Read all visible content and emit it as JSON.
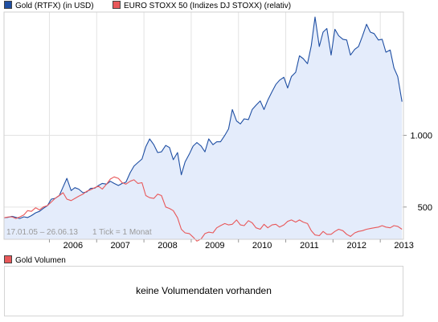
{
  "legend": {
    "series1": {
      "label": "Gold (RTFX) (in USD)",
      "color": "#1f4fa3"
    },
    "series2": {
      "label": "EURO STOXX 50 (Indizes DJ STOXX) (relativ)",
      "color": "#e8585a"
    }
  },
  "info": {
    "date_range": "17.01.05 – 26.06.13",
    "tick": "1 Tick = 1 Monat"
  },
  "volume": {
    "legend_label": "Gold Volumen",
    "legend_color": "#e8585a",
    "message": "keine Volumendaten vorhanden"
  },
  "chart_data": {
    "type": "line",
    "x_tick_labels": [
      "2006",
      "2007",
      "2008",
      "2009",
      "2010",
      "2011",
      "2012",
      "2013"
    ],
    "y_tick_labels": [
      "500",
      "1.000"
    ],
    "y_ticks": [
      500,
      1000
    ],
    "xlim": [
      2005.04,
      2013.49
    ],
    "ylim": [
      275,
      1860
    ],
    "grid": true,
    "legend_position": "top-left",
    "series": [
      {
        "name": "Gold (RTFX) (in USD)",
        "color": "#1f4fa3",
        "fill": "#e4ecfb",
        "points": [
          [
            2005.04,
            425
          ],
          [
            2005.12,
            428
          ],
          [
            2005.21,
            435
          ],
          [
            2005.29,
            428
          ],
          [
            2005.37,
            420
          ],
          [
            2005.46,
            432
          ],
          [
            2005.54,
            427
          ],
          [
            2005.62,
            440
          ],
          [
            2005.71,
            460
          ],
          [
            2005.79,
            470
          ],
          [
            2005.87,
            490
          ],
          [
            2005.96,
            510
          ],
          [
            2006.04,
            555
          ],
          [
            2006.12,
            560
          ],
          [
            2006.21,
            580
          ],
          [
            2006.29,
            640
          ],
          [
            2006.37,
            700
          ],
          [
            2006.46,
            615
          ],
          [
            2006.54,
            635
          ],
          [
            2006.62,
            625
          ],
          [
            2006.71,
            600
          ],
          [
            2006.79,
            605
          ],
          [
            2006.87,
            630
          ],
          [
            2006.96,
            632
          ],
          [
            2007.04,
            650
          ],
          [
            2007.12,
            665
          ],
          [
            2007.21,
            660
          ],
          [
            2007.29,
            680
          ],
          [
            2007.37,
            665
          ],
          [
            2007.46,
            650
          ],
          [
            2007.54,
            665
          ],
          [
            2007.62,
            673
          ],
          [
            2007.71,
            740
          ],
          [
            2007.79,
            785
          ],
          [
            2007.87,
            810
          ],
          [
            2007.96,
            835
          ],
          [
            2008.04,
            920
          ],
          [
            2008.12,
            975
          ],
          [
            2008.21,
            935
          ],
          [
            2008.29,
            880
          ],
          [
            2008.37,
            885
          ],
          [
            2008.46,
            930
          ],
          [
            2008.54,
            915
          ],
          [
            2008.62,
            830
          ],
          [
            2008.71,
            880
          ],
          [
            2008.79,
            725
          ],
          [
            2008.87,
            815
          ],
          [
            2008.96,
            870
          ],
          [
            2009.04,
            925
          ],
          [
            2009.12,
            950
          ],
          [
            2009.21,
            925
          ],
          [
            2009.29,
            885
          ],
          [
            2009.37,
            975
          ],
          [
            2009.46,
            935
          ],
          [
            2009.54,
            955
          ],
          [
            2009.62,
            955
          ],
          [
            2009.71,
            1000
          ],
          [
            2009.79,
            1045
          ],
          [
            2009.87,
            1180
          ],
          [
            2009.96,
            1100
          ],
          [
            2010.04,
            1080
          ],
          [
            2010.12,
            1115
          ],
          [
            2010.21,
            1110
          ],
          [
            2010.29,
            1180
          ],
          [
            2010.37,
            1210
          ],
          [
            2010.46,
            1240
          ],
          [
            2010.54,
            1180
          ],
          [
            2010.62,
            1245
          ],
          [
            2010.71,
            1305
          ],
          [
            2010.79,
            1355
          ],
          [
            2010.87,
            1385
          ],
          [
            2010.96,
            1405
          ],
          [
            2011.04,
            1330
          ],
          [
            2011.12,
            1410
          ],
          [
            2011.21,
            1440
          ],
          [
            2011.29,
            1555
          ],
          [
            2011.37,
            1535
          ],
          [
            2011.46,
            1500
          ],
          [
            2011.54,
            1625
          ],
          [
            2011.62,
            1825
          ],
          [
            2011.71,
            1620
          ],
          [
            2011.79,
            1720
          ],
          [
            2011.87,
            1745
          ],
          [
            2011.96,
            1560
          ],
          [
            2012.04,
            1740
          ],
          [
            2012.12,
            1695
          ],
          [
            2012.21,
            1670
          ],
          [
            2012.29,
            1665
          ],
          [
            2012.37,
            1560
          ],
          [
            2012.46,
            1600
          ],
          [
            2012.54,
            1620
          ],
          [
            2012.62,
            1690
          ],
          [
            2012.71,
            1775
          ],
          [
            2012.79,
            1720
          ],
          [
            2012.87,
            1710
          ],
          [
            2012.96,
            1665
          ],
          [
            2013.04,
            1670
          ],
          [
            2013.12,
            1580
          ],
          [
            2013.21,
            1595
          ],
          [
            2013.29,
            1470
          ],
          [
            2013.37,
            1410
          ],
          [
            2013.46,
            1235
          ]
        ]
      },
      {
        "name": "EURO STOXX 50 (Indizes DJ STOXX) (relativ)",
        "color": "#e8585a",
        "points": [
          [
            2005.04,
            425
          ],
          [
            2005.12,
            430
          ],
          [
            2005.21,
            432
          ],
          [
            2005.29,
            420
          ],
          [
            2005.37,
            430
          ],
          [
            2005.46,
            445
          ],
          [
            2005.54,
            475
          ],
          [
            2005.62,
            470
          ],
          [
            2005.71,
            495
          ],
          [
            2005.79,
            480
          ],
          [
            2005.87,
            500
          ],
          [
            2005.96,
            510
          ],
          [
            2006.04,
            535
          ],
          [
            2006.12,
            560
          ],
          [
            2006.21,
            580
          ],
          [
            2006.29,
            600
          ],
          [
            2006.37,
            555
          ],
          [
            2006.46,
            545
          ],
          [
            2006.54,
            560
          ],
          [
            2006.62,
            575
          ],
          [
            2006.71,
            590
          ],
          [
            2006.79,
            610
          ],
          [
            2006.87,
            620
          ],
          [
            2006.96,
            635
          ],
          [
            2007.04,
            645
          ],
          [
            2007.12,
            625
          ],
          [
            2007.21,
            660
          ],
          [
            2007.29,
            695
          ],
          [
            2007.37,
            710
          ],
          [
            2007.46,
            700
          ],
          [
            2007.54,
            670
          ],
          [
            2007.62,
            660
          ],
          [
            2007.71,
            680
          ],
          [
            2007.79,
            690
          ],
          [
            2007.87,
            665
          ],
          [
            2007.96,
            670
          ],
          [
            2008.04,
            580
          ],
          [
            2008.12,
            565
          ],
          [
            2008.21,
            560
          ],
          [
            2008.29,
            590
          ],
          [
            2008.37,
            580
          ],
          [
            2008.46,
            500
          ],
          [
            2008.54,
            490
          ],
          [
            2008.62,
            475
          ],
          [
            2008.71,
            425
          ],
          [
            2008.79,
            345
          ],
          [
            2008.87,
            320
          ],
          [
            2008.96,
            315
          ],
          [
            2009.04,
            290
          ],
          [
            2009.12,
            262
          ],
          [
            2009.21,
            278
          ],
          [
            2009.29,
            315
          ],
          [
            2009.37,
            325
          ],
          [
            2009.46,
            320
          ],
          [
            2009.54,
            355
          ],
          [
            2009.62,
            370
          ],
          [
            2009.71,
            385
          ],
          [
            2009.79,
            375
          ],
          [
            2009.87,
            380
          ],
          [
            2009.96,
            410
          ],
          [
            2010.04,
            375
          ],
          [
            2010.12,
            370
          ],
          [
            2010.21,
            405
          ],
          [
            2010.29,
            390
          ],
          [
            2010.37,
            355
          ],
          [
            2010.46,
            345
          ],
          [
            2010.54,
            380
          ],
          [
            2010.62,
            355
          ],
          [
            2010.71,
            375
          ],
          [
            2010.79,
            380
          ],
          [
            2010.87,
            360
          ],
          [
            2010.96,
            375
          ],
          [
            2011.04,
            400
          ],
          [
            2011.12,
            410
          ],
          [
            2011.21,
            395
          ],
          [
            2011.29,
            410
          ],
          [
            2011.37,
            395
          ],
          [
            2011.46,
            385
          ],
          [
            2011.54,
            335
          ],
          [
            2011.62,
            305
          ],
          [
            2011.71,
            300
          ],
          [
            2011.79,
            330
          ],
          [
            2011.87,
            310
          ],
          [
            2011.96,
            310
          ],
          [
            2012.04,
            330
          ],
          [
            2012.12,
            345
          ],
          [
            2012.21,
            335
          ],
          [
            2012.29,
            310
          ],
          [
            2012.37,
            295
          ],
          [
            2012.46,
            320
          ],
          [
            2012.54,
            330
          ],
          [
            2012.62,
            335
          ],
          [
            2012.71,
            345
          ],
          [
            2012.79,
            350
          ],
          [
            2012.87,
            355
          ],
          [
            2012.96,
            360
          ],
          [
            2013.04,
            370
          ],
          [
            2013.12,
            360
          ],
          [
            2013.21,
            355
          ],
          [
            2013.29,
            370
          ],
          [
            2013.37,
            365
          ],
          [
            2013.46,
            345
          ]
        ]
      }
    ]
  }
}
